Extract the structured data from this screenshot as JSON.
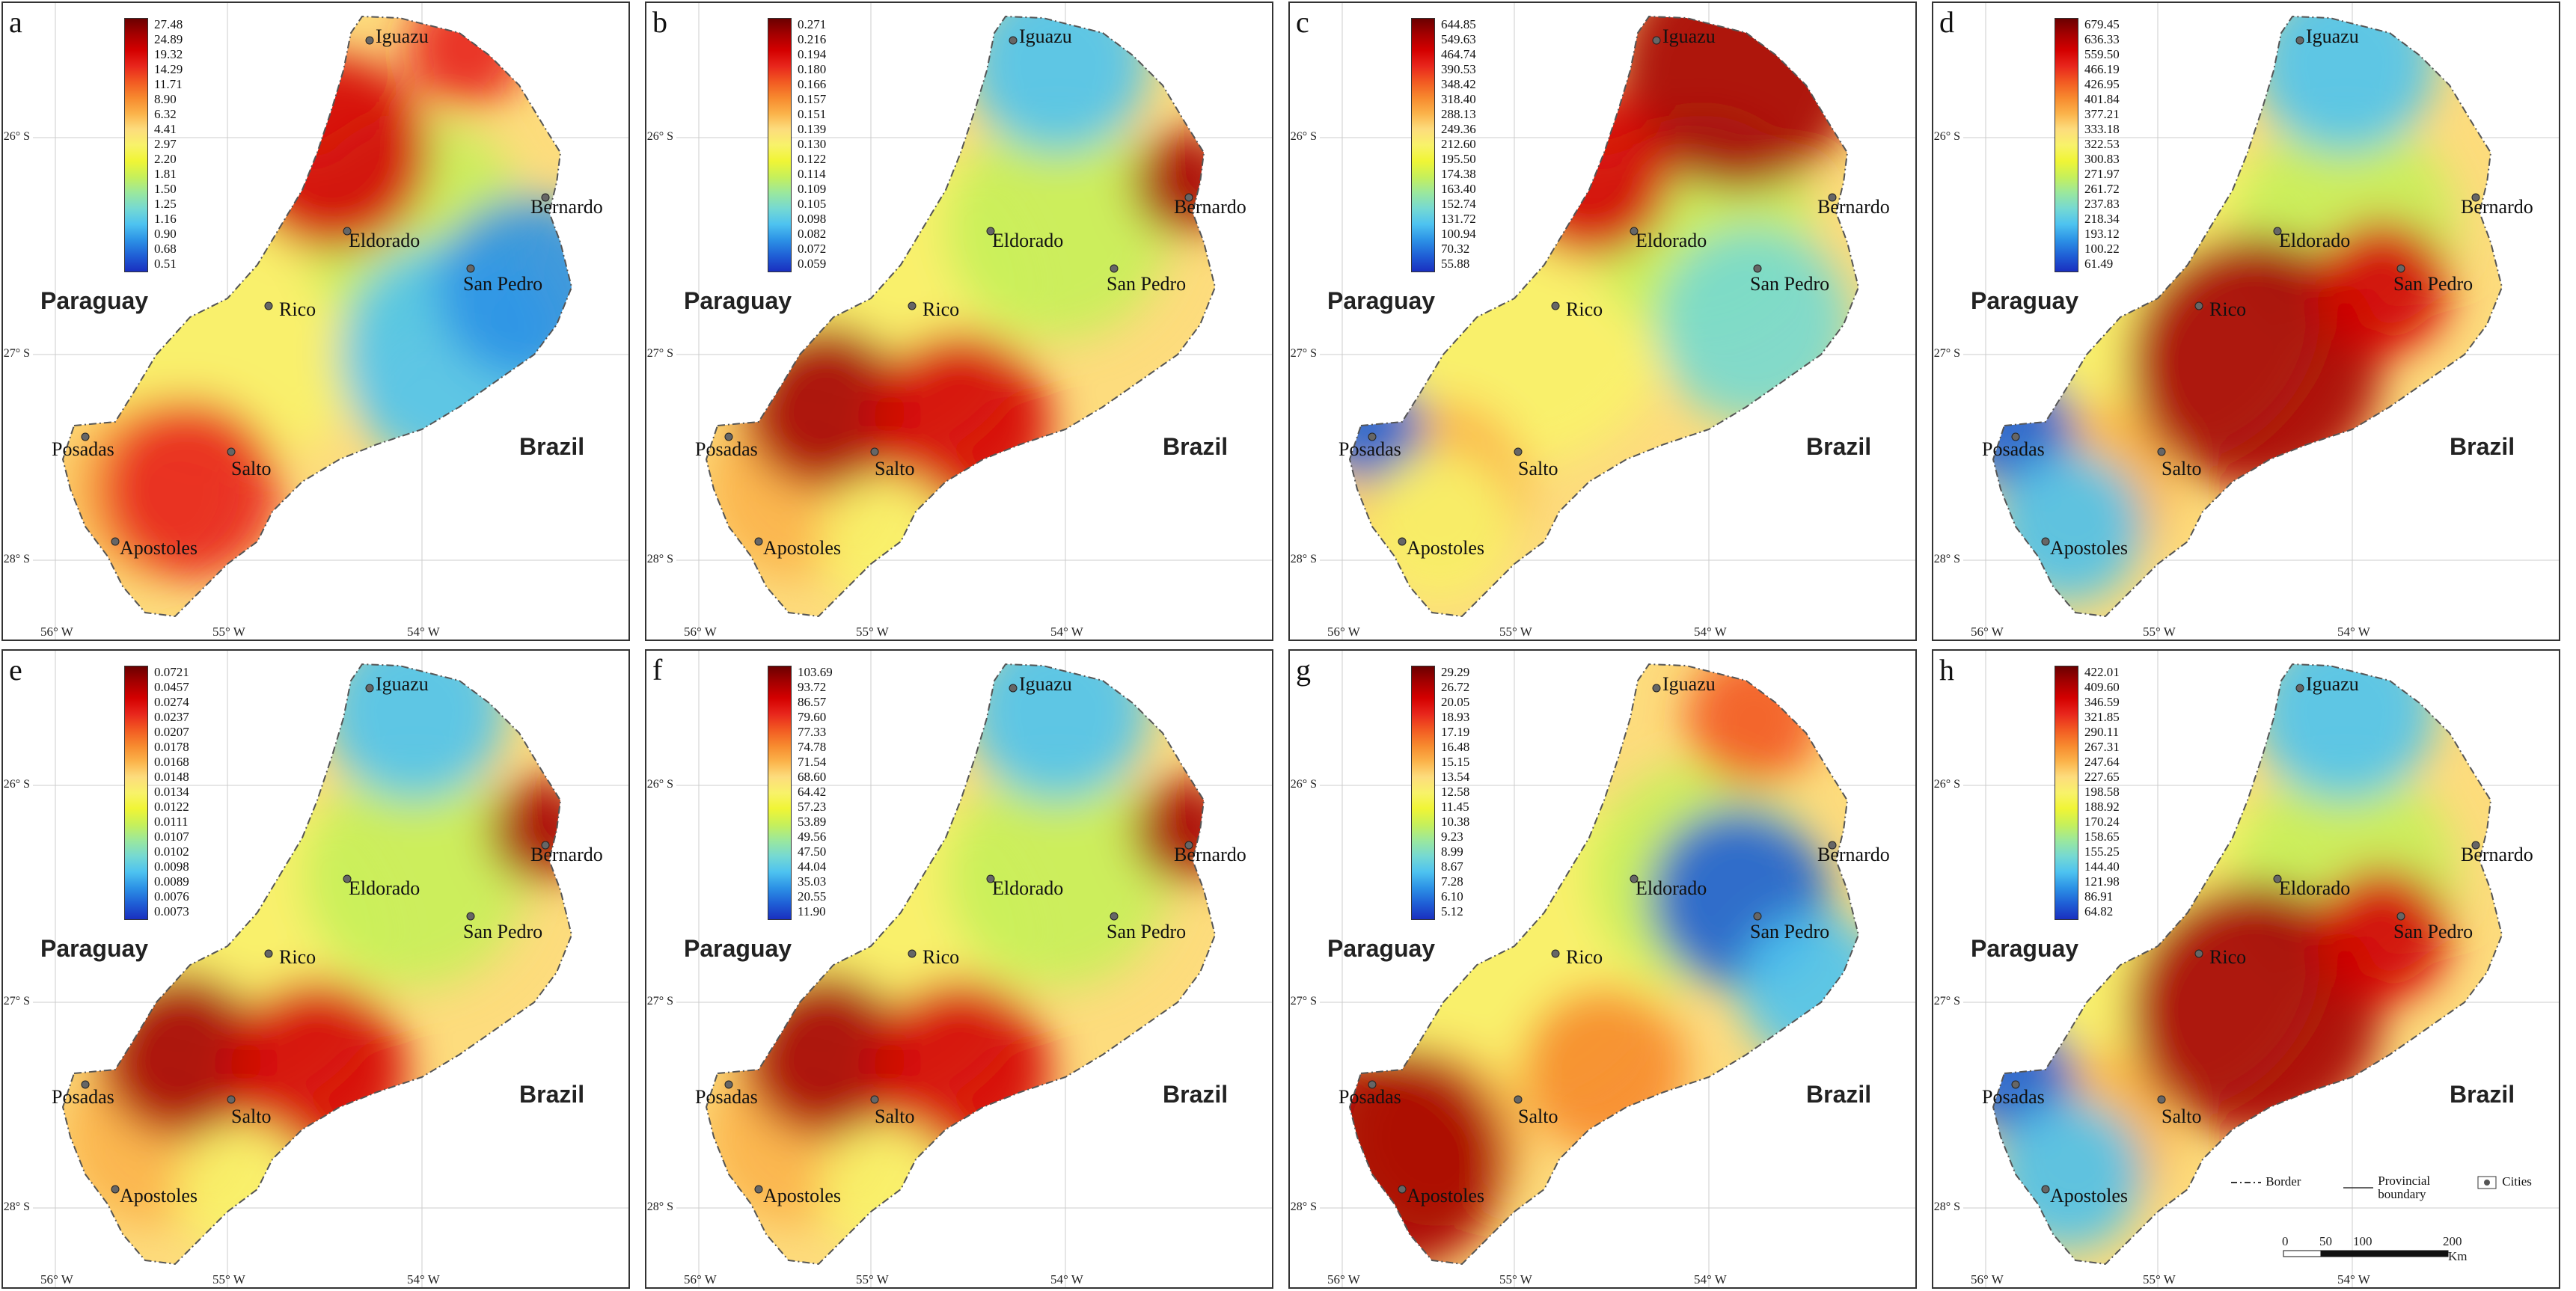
{
  "panels": [
    {
      "label": "a",
      "legend": [
        "27.48",
        "24.89",
        "19.32",
        "14.29",
        "11.71",
        "8.90",
        "6.32",
        "4.41",
        "2.97",
        "2.20",
        "1.81",
        "1.50",
        "1.25",
        "1.16",
        "0.90",
        "0.68",
        "0.51"
      ],
      "hot": "nw"
    },
    {
      "label": "b",
      "legend": [
        "0.271",
        "0.216",
        "0.194",
        "0.180",
        "0.166",
        "0.157",
        "0.151",
        "0.139",
        "0.130",
        "0.122",
        "0.114",
        "0.109",
        "0.105",
        "0.098",
        "0.082",
        "0.072",
        "0.059"
      ],
      "hot": "sw"
    },
    {
      "label": "c",
      "legend": [
        "644.85",
        "549.63",
        "464.74",
        "390.53",
        "348.42",
        "318.40",
        "288.13",
        "249.36",
        "212.60",
        "195.50",
        "174.38",
        "163.40",
        "152.74",
        "131.72",
        "100.94",
        "70.32",
        "55.88"
      ],
      "hot": "n"
    },
    {
      "label": "d",
      "legend": [
        "679.45",
        "636.33",
        "559.50",
        "466.19",
        "426.95",
        "401.84",
        "377.21",
        "333.18",
        "322.53",
        "300.83",
        "271.97",
        "261.72",
        "237.83",
        "218.34",
        "193.12",
        "100.22",
        "61.49"
      ],
      "hot": "center"
    },
    {
      "label": "e",
      "legend": [
        "0.0721",
        "0.0457",
        "0.0274",
        "0.0237",
        "0.0207",
        "0.0178",
        "0.0168",
        "0.0148",
        "0.0134",
        "0.0122",
        "0.0111",
        "0.0107",
        "0.0102",
        "0.0098",
        "0.0089",
        "0.0076",
        "0.0073"
      ],
      "hot": "sw"
    },
    {
      "label": "f",
      "legend": [
        "103.69",
        "93.72",
        "86.57",
        "79.60",
        "77.33",
        "74.78",
        "71.54",
        "68.60",
        "64.42",
        "57.23",
        "53.89",
        "49.56",
        "47.50",
        "44.04",
        "35.03",
        "20.55",
        "11.90"
      ],
      "hot": "sw"
    },
    {
      "label": "g",
      "legend": [
        "29.29",
        "26.72",
        "20.05",
        "18.93",
        "17.19",
        "16.48",
        "15.15",
        "13.54",
        "12.58",
        "11.45",
        "10.38",
        "9.23",
        "8.99",
        "8.67",
        "7.28",
        "6.10",
        "5.12"
      ],
      "hot": "s"
    },
    {
      "label": "h",
      "legend": [
        "422.01",
        "409.60",
        "346.59",
        "321.85",
        "290.11",
        "267.31",
        "247.64",
        "227.65",
        "198.58",
        "188.92",
        "170.24",
        "158.65",
        "155.25",
        "144.40",
        "121.98",
        "86.91",
        "64.82"
      ],
      "hot": "center"
    }
  ],
  "cities": {
    "iguazu": "Iguazu",
    "bernardo": "Bernardo",
    "eldorado": "Eldorado",
    "san_pedro": "San Pedro",
    "rico": "Rico",
    "posadas": "Posadas",
    "salto": "Salto",
    "apostoles": "Apostoles"
  },
  "countries": {
    "paraguay": "Paraguay",
    "brazil": "Brazil"
  },
  "lat_labels": [
    "26° S",
    "27° S",
    "28° S"
  ],
  "lon_labels": [
    "56° W",
    "55° W",
    "54° W"
  ],
  "map_legend": {
    "border": "Border",
    "provincial": "Provincial boundary",
    "cities": "Cities"
  },
  "scale": {
    "ticks": [
      "0",
      "50",
      "100",
      "200"
    ],
    "unit": "Km"
  },
  "colors": [
    "#6b0000",
    "#a50000",
    "#d40000",
    "#e8261c",
    "#f25a22",
    "#f7892e",
    "#fbb34a",
    "#fddc7d",
    "#f8f26a",
    "#f0f535",
    "#c7f05a",
    "#9be89c",
    "#76d9d2",
    "#4ec3f0",
    "#2c92e6",
    "#1f5fd6",
    "#1a2fbf"
  ]
}
